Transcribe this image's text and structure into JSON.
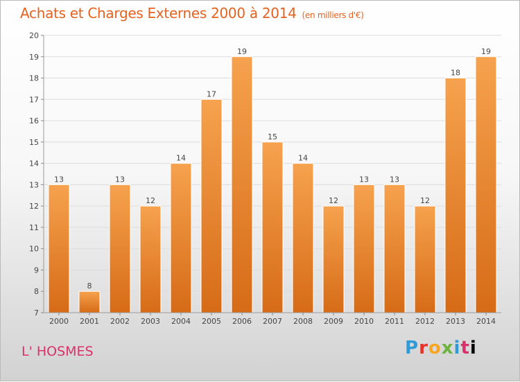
{
  "title": "Achats et Charges Externes 2000 à 2014",
  "title_unit": "(en milliers d'€)",
  "location": "L' HOSMES",
  "brand": {
    "letters": [
      "P",
      "r",
      "o",
      "x",
      "i",
      "t",
      "i"
    ]
  },
  "colors": {
    "title": "#e4621f",
    "location": "#d9326a",
    "bar_top": "#f6a24e",
    "bar_bottom": "#d66b17",
    "grid": "#dcdcdc",
    "axis_text": "#444444"
  },
  "chart_data": {
    "type": "bar",
    "categories": [
      "2000",
      "2001",
      "2002",
      "2003",
      "2004",
      "2005",
      "2006",
      "2007",
      "2008",
      "2009",
      "2010",
      "2011",
      "2012",
      "2013",
      "2014"
    ],
    "values": [
      13,
      8,
      13,
      12,
      14,
      17,
      19,
      15,
      14,
      12,
      13,
      13,
      12,
      18,
      19
    ],
    "data_labels": [
      "13",
      "8",
      "13",
      "12",
      "14",
      "17",
      "19",
      "15",
      "14",
      "12",
      "13",
      "13",
      "12",
      "18",
      "19"
    ],
    "ylim": [
      7,
      20
    ],
    "yticks": [
      "7",
      "8",
      "9",
      "10",
      "11",
      "12",
      "13",
      "14",
      "15",
      "16",
      "17",
      "18",
      "19",
      "20"
    ],
    "grid": true,
    "legend": "none"
  }
}
